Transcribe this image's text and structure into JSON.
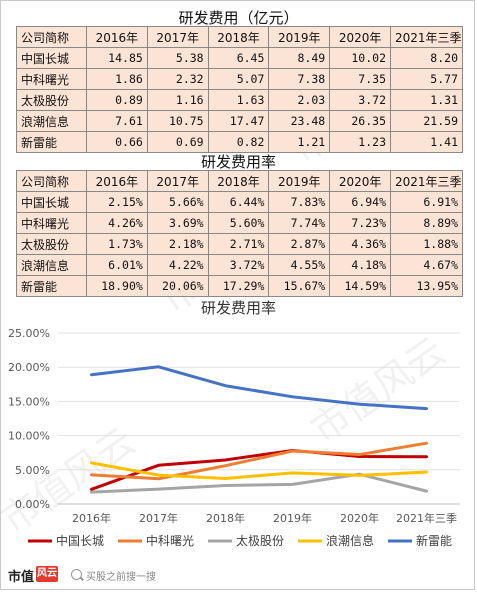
{
  "table1": {
    "title": "研发费用（亿元）",
    "headers": [
      "公司简称",
      "2016年",
      "2017年",
      "2018年",
      "2019年",
      "2020年",
      "2021年三季"
    ],
    "rows": [
      [
        "中国长城",
        "14.85",
        "5.38",
        "6.45",
        "8.49",
        "10.02",
        "8.20"
      ],
      [
        "中科曙光",
        "1.86",
        "2.32",
        "5.07",
        "7.38",
        "7.35",
        "5.77"
      ],
      [
        "太极股份",
        "0.89",
        "1.16",
        "1.63",
        "2.03",
        "3.72",
        "1.31"
      ],
      [
        "浪潮信息",
        "7.61",
        "10.75",
        "17.47",
        "23.48",
        "26.35",
        "21.59"
      ],
      [
        "新雷能",
        "0.66",
        "0.69",
        "0.82",
        "1.21",
        "1.23",
        "1.41"
      ]
    ]
  },
  "table2": {
    "title": "研发费用率",
    "headers": [
      "公司简称",
      "2016年",
      "2017年",
      "2018年",
      "2019年",
      "2020年",
      "2021年三季"
    ],
    "rows": [
      [
        "中国长城",
        "2.15%",
        "5.66%",
        "6.44%",
        "7.83%",
        "6.94%",
        "6.91%"
      ],
      [
        "中科曙光",
        "4.26%",
        "3.69%",
        "5.60%",
        "7.74%",
        "7.23%",
        "8.89%"
      ],
      [
        "太极股份",
        "1.73%",
        "2.18%",
        "2.71%",
        "2.87%",
        "4.36%",
        "1.88%"
      ],
      [
        "浪潮信息",
        "6.01%",
        "4.22%",
        "3.72%",
        "4.55%",
        "4.18%",
        "4.67%"
      ],
      [
        "新雷能",
        "18.90%",
        "20.06%",
        "17.29%",
        "15.67%",
        "14.59%",
        "13.95%"
      ]
    ]
  },
  "chart_data": {
    "type": "line",
    "title": "研发费用率",
    "categories": [
      "2016年",
      "2017年",
      "2018年",
      "2019年",
      "2020年",
      "2021年三季"
    ],
    "y_ticks": [
      "0.00%",
      "5.00%",
      "10.00%",
      "15.00%",
      "20.00%",
      "25.00%"
    ],
    "ylim": [
      0,
      25
    ],
    "grid": true,
    "legend_position": "bottom",
    "series": [
      {
        "name": "中国长城",
        "color": "#c00000",
        "values": [
          2.15,
          5.66,
          6.44,
          7.83,
          6.94,
          6.91
        ]
      },
      {
        "name": "中科曙光",
        "color": "#ed7d31",
        "values": [
          4.26,
          3.69,
          5.6,
          7.74,
          7.23,
          8.89
        ]
      },
      {
        "name": "太极股份",
        "color": "#a5a5a5",
        "values": [
          1.73,
          2.18,
          2.71,
          2.87,
          4.36,
          1.88
        ]
      },
      {
        "name": "浪潮信息",
        "color": "#ffc000",
        "values": [
          6.01,
          4.22,
          3.72,
          4.55,
          4.18,
          4.67
        ]
      },
      {
        "name": "新雷能",
        "color": "#4472c4",
        "values": [
          18.9,
          20.06,
          17.29,
          15.67,
          14.59,
          13.95
        ]
      }
    ]
  },
  "footer": {
    "brand": "市值",
    "brand_box": "风云",
    "search_hint": "买股之前搜一搜"
  },
  "watermark": "市值风云"
}
